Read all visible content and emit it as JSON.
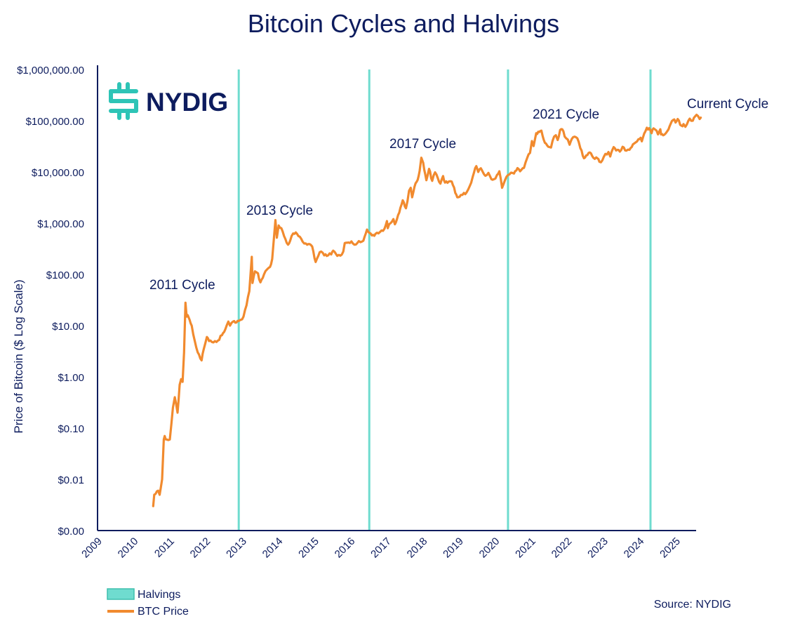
{
  "chart_data": {
    "type": "line",
    "title": "Bitcoin Cycles and Halvings",
    "ylabel": "Price of Bitcoin ($ Log Scale)",
    "yscale": "log",
    "ylim": [
      0.001,
      1000000
    ],
    "xlim": [
      "2009-01-01",
      "2025-10-01"
    ],
    "y_tick_values": [
      0.001,
      0.01,
      0.1,
      1,
      10,
      100,
      1000,
      10000,
      100000,
      1000000
    ],
    "y_tick_labels": [
      "$0.00",
      "$0.01",
      "$0.10",
      "$1.00",
      "$10.00",
      "$100.00",
      "$1,000.00",
      "$10,000.00",
      "$100,000.00",
      "$1,000,000.00"
    ],
    "x_tick_labels": [
      "2009",
      "2010",
      "2011",
      "2012",
      "2013",
      "2014",
      "2015",
      "2016",
      "2017",
      "2018",
      "2019",
      "2020",
      "2021",
      "2022",
      "2023",
      "2024",
      "2025"
    ],
    "grid": false,
    "legend_position": "bottom-left",
    "halvings": [
      "2012-11-28",
      "2016-07-09",
      "2020-05-11",
      "2024-04-20"
    ],
    "annotations": [
      {
        "text": "2011 Cycle",
        "x": "2011-06-08",
        "y": 30
      },
      {
        "text": "2013 Cycle",
        "x": "2013-12-04",
        "y": 1200
      },
      {
        "text": "2017 Cycle",
        "x": "2017-12-17",
        "y": 19000
      },
      {
        "text": "2021 Cycle",
        "x": "2021-10-15",
        "y": 68000
      },
      {
        "text": "Current Cycle",
        "x": "2025-01-20",
        "y": 108000
      }
    ],
    "series": [
      {
        "name": "BTC Price",
        "color": "#f18a2e",
        "points": [
          [
            "2010-07-17",
            0.003
          ],
          [
            "2010-07-28",
            0.005
          ],
          [
            "2010-09-05",
            0.006
          ],
          [
            "2010-09-20",
            0.005
          ],
          [
            "2010-10-15",
            0.01
          ],
          [
            "2010-11-01",
            0.06
          ],
          [
            "2010-11-10",
            0.07
          ],
          [
            "2010-12-01",
            0.06
          ],
          [
            "2011-01-01",
            0.06
          ],
          [
            "2011-02-01",
            0.25
          ],
          [
            "2011-02-20",
            0.4
          ],
          [
            "2011-03-20",
            0.2
          ],
          [
            "2011-04-10",
            0.7
          ],
          [
            "2011-04-25",
            0.9
          ],
          [
            "2011-05-10",
            0.8
          ],
          [
            "2011-05-25",
            3.0
          ],
          [
            "2011-06-08",
            28
          ],
          [
            "2011-06-20",
            15
          ],
          [
            "2011-07-01",
            16
          ],
          [
            "2011-07-20",
            13
          ],
          [
            "2011-08-10",
            10
          ],
          [
            "2011-09-10",
            5
          ],
          [
            "2011-10-10",
            3
          ],
          [
            "2011-11-18",
            2.1
          ],
          [
            "2011-12-10",
            3.5
          ],
          [
            "2012-01-10",
            6
          ],
          [
            "2012-02-01",
            5
          ],
          [
            "2012-03-01",
            4.8
          ],
          [
            "2012-04-01",
            5
          ],
          [
            "2012-05-01",
            5.1
          ],
          [
            "2012-06-10",
            6.5
          ],
          [
            "2012-07-15",
            8.5
          ],
          [
            "2012-08-15",
            12
          ],
          [
            "2012-09-01",
            10
          ],
          [
            "2012-10-01",
            12
          ],
          [
            "2012-11-28",
            12.3
          ],
          [
            "2012-12-20",
            13
          ],
          [
            "2013-01-15",
            15
          ],
          [
            "2013-02-15",
            25
          ],
          [
            "2013-03-15",
            47
          ],
          [
            "2013-04-09",
            220
          ],
          [
            "2013-04-16",
            68
          ],
          [
            "2013-05-10",
            115
          ],
          [
            "2013-06-10",
            105
          ],
          [
            "2013-07-05",
            70
          ],
          [
            "2013-08-10",
            100
          ],
          [
            "2013-09-10",
            125
          ],
          [
            "2013-10-10",
            140
          ],
          [
            "2013-11-01",
            200
          ],
          [
            "2013-11-15",
            430
          ],
          [
            "2013-12-04",
            1150
          ],
          [
            "2013-12-18",
            520
          ],
          [
            "2014-01-05",
            900
          ],
          [
            "2014-02-01",
            800
          ],
          [
            "2014-03-01",
            560
          ],
          [
            "2014-04-10",
            380
          ],
          [
            "2014-05-01",
            450
          ],
          [
            "2014-06-01",
            630
          ],
          [
            "2014-07-10",
            620
          ],
          [
            "2014-08-20",
            500
          ],
          [
            "2014-09-20",
            400
          ],
          [
            "2014-10-20",
            380
          ],
          [
            "2014-11-15",
            390
          ],
          [
            "2014-12-10",
            350
          ],
          [
            "2015-01-14",
            175
          ],
          [
            "2015-02-10",
            230
          ],
          [
            "2015-03-10",
            280
          ],
          [
            "2015-04-10",
            235
          ],
          [
            "2015-05-20",
            235
          ],
          [
            "2015-06-20",
            245
          ],
          [
            "2015-07-10",
            290
          ],
          [
            "2015-08-20",
            230
          ],
          [
            "2015-09-20",
            232
          ],
          [
            "2015-10-20",
            280
          ],
          [
            "2015-11-04",
            410
          ],
          [
            "2015-12-10",
            420
          ],
          [
            "2016-01-10",
            440
          ],
          [
            "2016-02-10",
            380
          ],
          [
            "2016-03-10",
            410
          ],
          [
            "2016-04-10",
            425
          ],
          [
            "2016-05-10",
            455
          ],
          [
            "2016-06-16",
            750
          ],
          [
            "2016-07-09",
            650
          ],
          [
            "2016-08-05",
            575
          ],
          [
            "2016-09-10",
            620
          ],
          [
            "2016-10-10",
            630
          ],
          [
            "2016-11-10",
            720
          ],
          [
            "2016-12-10",
            780
          ],
          [
            "2017-01-04",
            1100
          ],
          [
            "2017-01-12",
            800
          ],
          [
            "2017-02-10",
            1000
          ],
          [
            "2017-03-10",
            1200
          ],
          [
            "2017-03-25",
            950
          ],
          [
            "2017-04-15",
            1200
          ],
          [
            "2017-05-20",
            2000
          ],
          [
            "2017-06-12",
            2800
          ],
          [
            "2017-07-15",
            1950
          ],
          [
            "2017-08-15",
            4300
          ],
          [
            "2017-09-01",
            4900
          ],
          [
            "2017-09-15",
            3200
          ],
          [
            "2017-10-20",
            6000
          ],
          [
            "2017-11-10",
            7000
          ],
          [
            "2017-11-30",
            10500
          ],
          [
            "2017-12-17",
            19000
          ],
          [
            "2018-01-05",
            15000
          ],
          [
            "2018-02-06",
            6900
          ],
          [
            "2018-03-05",
            11500
          ],
          [
            "2018-04-06",
            6700
          ],
          [
            "2018-05-05",
            9800
          ],
          [
            "2018-06-28",
            5900
          ],
          [
            "2018-07-25",
            8300
          ],
          [
            "2018-08-14",
            6200
          ],
          [
            "2018-09-20",
            6500
          ],
          [
            "2018-10-20",
            6500
          ],
          [
            "2018-11-25",
            3900
          ],
          [
            "2018-12-15",
            3200
          ],
          [
            "2019-01-20",
            3550
          ],
          [
            "2019-02-20",
            3900
          ],
          [
            "2019-03-20",
            4000
          ],
          [
            "2019-04-20",
            5300
          ],
          [
            "2019-05-20",
            8000
          ],
          [
            "2019-06-26",
            13000
          ],
          [
            "2019-07-15",
            10000
          ],
          [
            "2019-08-10",
            11800
          ],
          [
            "2019-09-25",
            8400
          ],
          [
            "2019-10-26",
            9600
          ],
          [
            "2019-11-25",
            7200
          ],
          [
            "2019-12-20",
            7200
          ],
          [
            "2020-01-20",
            8700
          ],
          [
            "2020-02-13",
            10300
          ],
          [
            "2020-03-12",
            4900
          ],
          [
            "2020-04-10",
            6900
          ],
          [
            "2020-05-11",
            8700
          ],
          [
            "2020-06-10",
            9700
          ],
          [
            "2020-07-10",
            9300
          ],
          [
            "2020-08-15",
            11900
          ],
          [
            "2020-09-10",
            10300
          ],
          [
            "2020-10-20",
            12000
          ],
          [
            "2020-11-20",
            18500
          ],
          [
            "2020-12-20",
            23500
          ],
          [
            "2021-01-08",
            40000
          ],
          [
            "2021-01-25",
            32000
          ],
          [
            "2021-02-20",
            57000
          ],
          [
            "2021-03-13",
            61000
          ],
          [
            "2021-04-14",
            64000
          ],
          [
            "2021-05-19",
            37000
          ],
          [
            "2021-06-22",
            31000
          ],
          [
            "2021-07-20",
            30000
          ],
          [
            "2021-08-20",
            49000
          ],
          [
            "2021-09-07",
            52000
          ],
          [
            "2021-09-25",
            42000
          ],
          [
            "2021-10-20",
            66000
          ],
          [
            "2021-11-10",
            68000
          ],
          [
            "2021-12-05",
            49000
          ],
          [
            "2022-01-05",
            43000
          ],
          [
            "2022-01-24",
            34000
          ],
          [
            "2022-02-15",
            44000
          ],
          [
            "2022-03-29",
            47500
          ],
          [
            "2022-04-25",
            39000
          ],
          [
            "2022-05-12",
            29000
          ],
          [
            "2022-06-18",
            18500
          ],
          [
            "2022-07-10",
            21000
          ],
          [
            "2022-08-15",
            24000
          ],
          [
            "2022-09-20",
            19000
          ],
          [
            "2022-10-20",
            19200
          ],
          [
            "2022-11-21",
            15800
          ],
          [
            "2022-12-20",
            16800
          ],
          [
            "2023-01-20",
            22500
          ],
          [
            "2023-02-20",
            24500
          ],
          [
            "2023-03-10",
            20000
          ],
          [
            "2023-04-14",
            30500
          ],
          [
            "2023-05-20",
            27000
          ],
          [
            "2023-06-15",
            25000
          ],
          [
            "2023-07-13",
            31000
          ],
          [
            "2023-08-20",
            26000
          ],
          [
            "2023-09-20",
            27000
          ],
          [
            "2023-10-25",
            34500
          ],
          [
            "2023-11-20",
            37500
          ],
          [
            "2023-12-20",
            43500
          ],
          [
            "2024-01-11",
            46500
          ],
          [
            "2024-01-23",
            39500
          ],
          [
            "2024-02-28",
            62000
          ],
          [
            "2024-03-14",
            73000
          ],
          [
            "2024-04-20",
            64000
          ],
          [
            "2024-05-01",
            57000
          ],
          [
            "2024-05-21",
            71000
          ],
          [
            "2024-06-20",
            64000
          ],
          [
            "2024-07-05",
            54000
          ],
          [
            "2024-07-29",
            68000
          ],
          [
            "2024-08-05",
            54000
          ],
          [
            "2024-09-06",
            53000
          ],
          [
            "2024-10-20",
            68000
          ],
          [
            "2024-11-22",
            98000
          ],
          [
            "2024-12-17",
            106000
          ],
          [
            "2024-12-30",
            92000
          ],
          [
            "2025-01-20",
            108000
          ],
          [
            "2025-02-28",
            80000
          ],
          [
            "2025-03-20",
            86000
          ],
          [
            "2025-04-08",
            76000
          ],
          [
            "2025-05-22",
            110000
          ],
          [
            "2025-06-22",
            100000
          ],
          [
            "2025-07-14",
            121000
          ],
          [
            "2025-08-14",
            123000
          ],
          [
            "2025-08-30",
            108000
          ],
          [
            "2025-09-10",
            115000
          ]
        ]
      }
    ]
  },
  "legend": {
    "halvings_label": "Halvings",
    "halvings_color": "#6fdccf",
    "halvings_border": "#3fbfae",
    "btc_label": "BTC Price",
    "btc_color": "#f18a2e"
  },
  "logo": {
    "text": "NYDIG",
    "icon_color": "#2ec4b6",
    "text_color": "#0d1c5e"
  },
  "source_text": "Source: NYDIG",
  "colors": {
    "title": "#0d1c5e",
    "axis": "#0d1c5e",
    "halving_line": "#6fdccf",
    "btc_line": "#f18a2e"
  }
}
